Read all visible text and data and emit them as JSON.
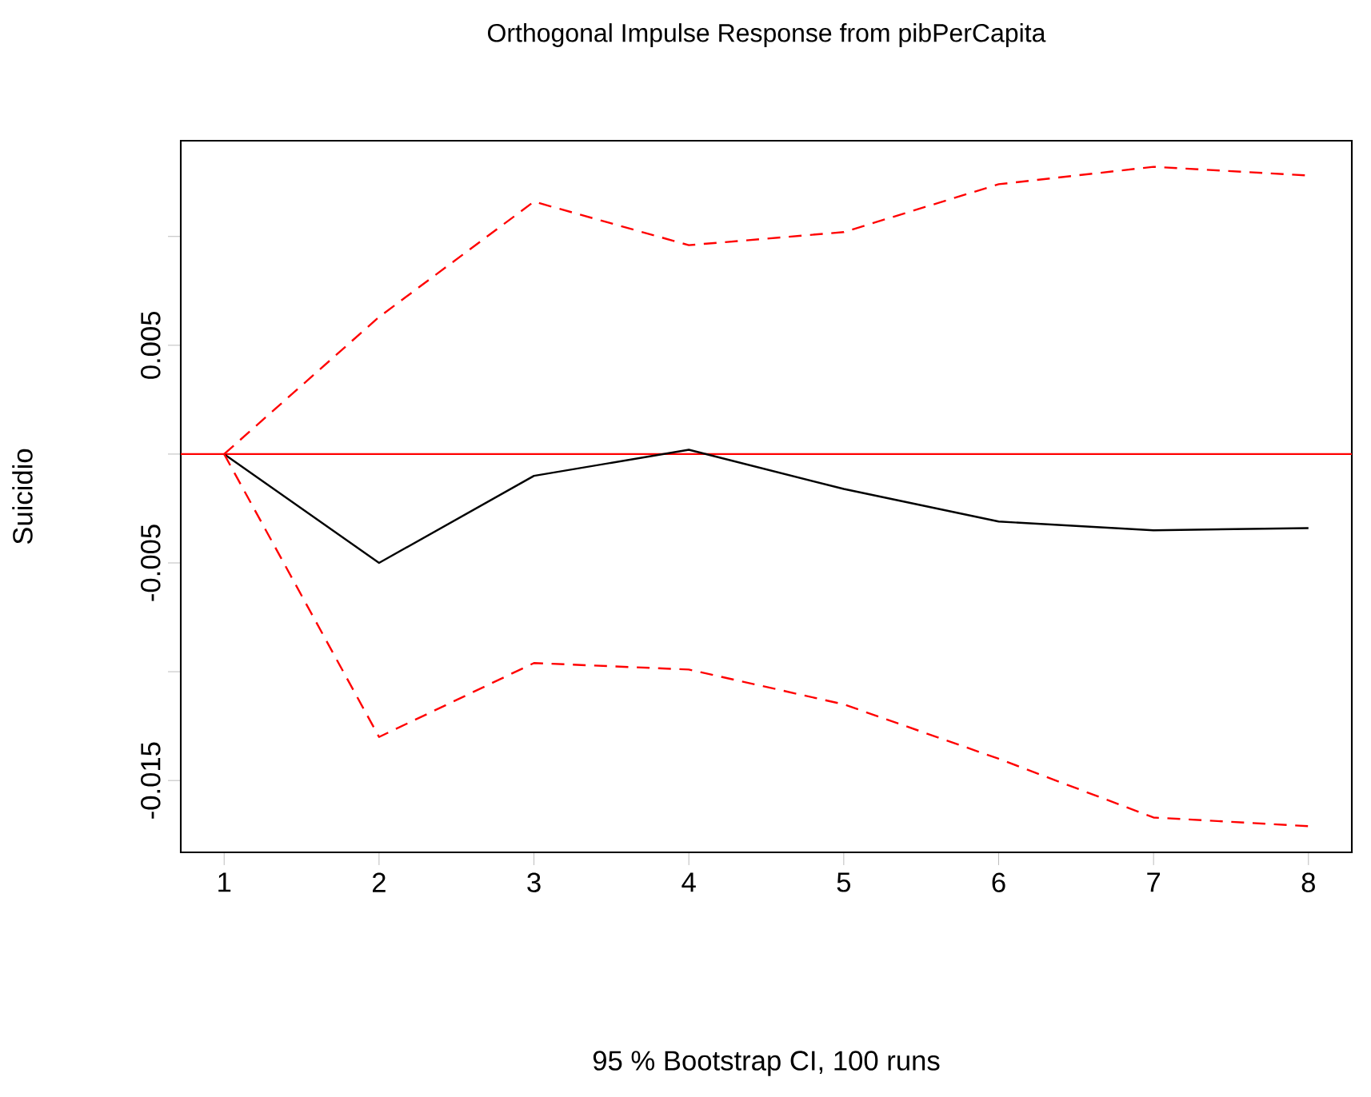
{
  "chart_data": {
    "type": "line",
    "title": "Orthogonal Impulse Response from pibPerCapita",
    "annotations": [
      "95 % Bootstrap CI,  100 runs"
    ],
    "ylabel": "Suicidio",
    "x": [
      1,
      2,
      3,
      4,
      5,
      6,
      7,
      8
    ],
    "series": [
      {
        "color": "#000000",
        "line_style": "solid",
        "values": [
          0,
          -0.005,
          -0.001,
          0.0002,
          -0.0016,
          -0.0031,
          -0.0035,
          -0.0034
        ]
      },
      {
        "color": "#ff0000",
        "line_style": "dashed",
        "values": [
          0,
          0.0063,
          0.0116,
          0.0096,
          0.0102,
          0.0124,
          0.0132,
          0.0128
        ]
      },
      {
        "color": "#ff0000",
        "line_style": "dashed",
        "values": [
          0,
          -0.013,
          -0.0096,
          -0.0099,
          -0.0115,
          -0.014,
          -0.0167,
          -0.0171
        ]
      }
    ],
    "xlim": [
      0.72,
      8.28
    ],
    "xticks": [
      1,
      2,
      3,
      4,
      5,
      6,
      7,
      8
    ],
    "ylim": [
      -0.0183,
      0.0144
    ],
    "yticks": [
      {
        "value": 0.01,
        "label": null
      },
      {
        "value": 0.005,
        "label": "0.005"
      },
      {
        "value": 0,
        "label": null
      },
      {
        "value": -0.005,
        "label": "-0.005"
      },
      {
        "value": -0.01,
        "label": null
      },
      {
        "value": -0.015,
        "label": "-0.015"
      }
    ],
    "ref_lines": [
      {
        "axis": "y",
        "value": 0,
        "color": "#ff0000"
      }
    ],
    "grid": false,
    "marker": "none"
  }
}
